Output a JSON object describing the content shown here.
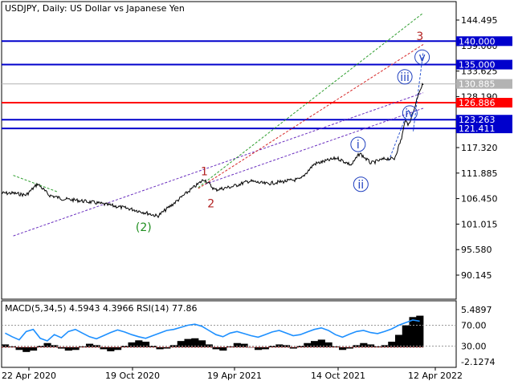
{
  "chart_data": {
    "type": "line",
    "title": "USDJPY, Daily:  US Dollar vs Japanese Yen",
    "price_axis": {
      "ylim": [
        85.0,
        147.0
      ],
      "ticks": [
        "144.495",
        "139.060",
        "133.625",
        "128.190",
        "117.320",
        "111.885",
        "106.450",
        "101.015",
        "95.580",
        "90.145"
      ]
    },
    "time_axis": {
      "ticks": [
        "22 Apr 2020",
        "19 Oct 2020",
        "19 Apr 2021",
        "14 Oct 2021",
        "12 Apr 2022"
      ]
    },
    "price_series": {
      "name": "USDJPY",
      "x": [
        "2020-04-22",
        "2020-05-15",
        "2020-06-05",
        "2020-06-25",
        "2020-07-20",
        "2020-08-20",
        "2020-09-15",
        "2020-10-19",
        "2020-11-20",
        "2020-12-20",
        "2021-01-06",
        "2021-02-05",
        "2021-03-05",
        "2021-03-31",
        "2021-04-19",
        "2021-05-20",
        "2021-06-20",
        "2021-07-20",
        "2021-08-20",
        "2021-09-20",
        "2021-10-14",
        "2021-11-24",
        "2021-12-20",
        "2022-01-04",
        "2022-01-24",
        "2022-02-20",
        "2022-03-07",
        "2022-03-20",
        "2022-03-28",
        "2022-03-31",
        "2022-04-12",
        "2022-04-20",
        "2022-04-28"
      ],
      "y": [
        107.6,
        107.2,
        109.6,
        107.2,
        106.4,
        106.0,
        105.6,
        104.9,
        104.2,
        103.3,
        102.7,
        105.5,
        108.2,
        110.6,
        108.3,
        109.0,
        110.2,
        109.6,
        110.1,
        110.6,
        113.8,
        115.1,
        113.6,
        116.1,
        114.0,
        115.0,
        114.9,
        119.3,
        123.8,
        121.7,
        125.6,
        129.2,
        130.9
      ]
    },
    "levels": [
      {
        "label": "140.000",
        "value": 140.0,
        "color": "#0000cc"
      },
      {
        "label": "135.000",
        "value": 135.0,
        "color": "#0000cc"
      },
      {
        "label": "130.885",
        "value": 130.885,
        "color": "#b3b3b3"
      },
      {
        "label": "126.886",
        "value": 126.886,
        "color": "#ff0000"
      },
      {
        "label": "123.263",
        "value": 123.263,
        "color": "#0000cc"
      },
      {
        "label": "121.411",
        "value": 121.411,
        "color": "#0000cc"
      }
    ],
    "trendlines": [
      {
        "style": "dashed",
        "color": "#6a2fbf",
        "from": [
          "2020-04-22",
          98.5
        ],
        "to": [
          "2022-04-28",
          129.0
        ]
      },
      {
        "style": "dashed",
        "color": "#6a2fbf",
        "from": [
          "2021-04-01",
          109.5
        ],
        "to": [
          "2022-04-28",
          125.7
        ]
      },
      {
        "style": "dashed",
        "color": "#d62828",
        "from": [
          "2021-03-20",
          108.6
        ],
        "to": [
          "2022-04-28",
          139.3
        ]
      },
      {
        "style": "dashed",
        "color": "#2e9e2e",
        "from": [
          "2021-03-20",
          108.8
        ],
        "to": [
          "2022-04-28",
          146.0
        ]
      },
      {
        "style": "dashed",
        "color": "#2e9e2e",
        "from": [
          "2020-04-22",
          111.4
        ],
        "to": [
          "2020-07-10",
          107.9
        ]
      },
      {
        "style": "dashed",
        "color": "#2a55d0",
        "from": [
          "2022-02-25",
          114.5
        ],
        "to": [
          "2022-04-02",
          125.5
        ]
      },
      {
        "style": "dashed",
        "color": "#2a55d0",
        "from": [
          "2022-04-10",
          120.8
        ],
        "to": [
          "2022-04-28",
          137.8
        ]
      }
    ],
    "wave_labels": [
      {
        "text": "1",
        "x": "2021-03-31",
        "y": 112.3,
        "color": "#b22222",
        "circled": false
      },
      {
        "text": "2",
        "x": "2021-04-12",
        "y": 105.4,
        "color": "#b22222",
        "circled": false
      },
      {
        "text": "(2)",
        "x": "2020-12-12",
        "y": 100.4,
        "color": "#1f8f1f",
        "circled": false
      },
      {
        "text": "i",
        "x": "2022-01-01",
        "y": 118.0,
        "color": "#1f3fbf",
        "circled": true
      },
      {
        "text": "ii",
        "x": "2022-01-06",
        "y": 109.5,
        "color": "#1f3fbf",
        "circled": true
      },
      {
        "text": "iii",
        "x": "2022-03-26",
        "y": 132.4,
        "color": "#1f3fbf",
        "circled": true
      },
      {
        "text": "iv",
        "x": "2022-04-04",
        "y": 124.7,
        "color": "#1f3fbf",
        "circled": true
      },
      {
        "text": "v",
        "x": "2022-04-26",
        "y": 136.6,
        "color": "#1f3fbf",
        "circled": true
      },
      {
        "text": "3",
        "x": "2022-04-22",
        "y": 141.1,
        "color": "#b22222",
        "circled": false
      }
    ],
    "indicator": {
      "title": "MACD(5,34,5) 4.5943 4.3966 RSI(14) 77.86",
      "macd_axis_ticks": [
        "5.4897",
        "-2.1274"
      ],
      "macd_range": [
        -2.1274,
        5.4897
      ],
      "rsi_levels": [
        "70.00",
        "30.00"
      ],
      "rsi_range": [
        0,
        100
      ],
      "macd_line_value": 4.5943,
      "signal_value": 4.3966,
      "rsi_value": 77.86,
      "macd_values": [
        0.4,
        0.1,
        -0.4,
        -0.7,
        -0.5,
        0.2,
        0.6,
        0.3,
        -0.2,
        -0.5,
        -0.4,
        0.1,
        0.5,
        0.3,
        -0.3,
        -0.6,
        -0.4,
        0.2,
        0.7,
        1.0,
        0.8,
        0.2,
        -0.3,
        -0.2,
        0.3,
        0.9,
        1.2,
        1.3,
        1.0,
        0.4,
        -0.3,
        -0.5,
        0.1,
        0.6,
        0.5,
        0.0,
        -0.4,
        -0.3,
        0.2,
        0.4,
        0.3,
        -0.2,
        0.2,
        0.6,
        0.9,
        1.1,
        0.7,
        0.1,
        -0.4,
        -0.2,
        0.3,
        0.6,
        0.4,
        0.1,
        0.3,
        0.8,
        1.8,
        3.2,
        4.4,
        4.6
      ],
      "rsi_values": [
        55,
        48,
        42,
        58,
        62,
        45,
        40,
        52,
        46,
        58,
        62,
        55,
        48,
        44,
        50,
        56,
        61,
        57,
        52,
        48,
        45,
        50,
        55,
        60,
        62,
        66,
        70,
        72,
        68,
        60,
        52,
        48,
        55,
        58,
        54,
        50,
        47,
        52,
        57,
        60,
        55,
        50,
        52,
        57,
        62,
        65,
        60,
        52,
        47,
        53,
        58,
        60,
        56,
        54,
        58,
        63,
        70,
        75,
        80,
        77.86
      ]
    }
  }
}
